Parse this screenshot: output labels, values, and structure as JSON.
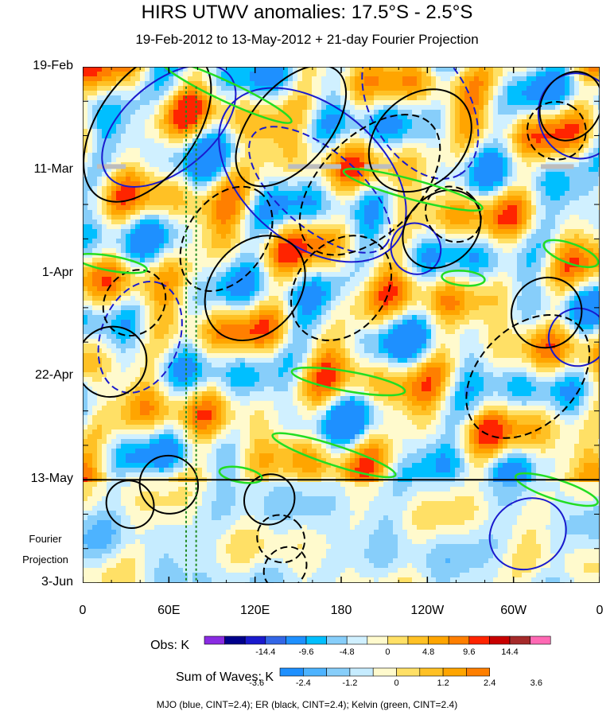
{
  "chart_data": {
    "type": "heatmap",
    "title": "HIRS UTWV anomalies: 17.5°S - 2.5°S",
    "subtitle": "19-Feb-2012 to 13-May-2012 + 21-day Fourier Projection",
    "xlabel": "",
    "ylabel": "",
    "x_ticks": [
      "0",
      "60E",
      "120E",
      "180",
      "120W",
      "60W",
      "0"
    ],
    "x_range_degrees_east": [
      0,
      360
    ],
    "y_ticks": [
      "19-Feb",
      "11-Mar",
      "1-Apr",
      "22-Apr",
      "13-May",
      "3-Jun"
    ],
    "y_range_days": [
      0,
      105
    ],
    "observation_end": "13-May",
    "projection_label_line1": "Fourier",
    "projection_label_line2": "Projection",
    "reference_longitudes_degrees_east": [
      72,
      79
    ],
    "obs_colorbar": {
      "label": "Obs: K",
      "tick_labels": [
        "-14.4",
        "-9.6",
        "-4.8",
        "0",
        "4.8",
        "9.6",
        "14.4"
      ],
      "colors": [
        "#8a2be2",
        "#00008b",
        "#1a1acd",
        "#3366e6",
        "#1e90ff",
        "#00bfff",
        "#87cefa",
        "#d0f0ff",
        "#fffacd",
        "#ffe066",
        "#ffc125",
        "#ffa500",
        "#ff7f00",
        "#ff2400",
        "#c80000",
        "#a52a2a",
        "#ff69b4"
      ]
    },
    "waves_colorbar": {
      "label": "Sum of Waves: K",
      "tick_labels": [
        "-3.6",
        "-2.4",
        "-1.2",
        "0",
        "1.2",
        "2.4",
        "3.6"
      ],
      "colors": [
        "#1e90ff",
        "#4db3ff",
        "#87cefa",
        "#c6ecff",
        "#fffacd",
        "#ffe066",
        "#ffc125",
        "#ffa500",
        "#ff7f00"
      ]
    },
    "contours": [
      {
        "name": "MJO",
        "color": "#1a1acd",
        "cint": 2.4
      },
      {
        "name": "ER",
        "color": "#000000",
        "cint": 2.4
      },
      {
        "name": "Kelvin",
        "color": "#22dd22",
        "cint": 2.4
      }
    ],
    "footnote": "MJO (blue, CINT=2.4); ER (black, CINT=2.4); Kelvin (green, CINT=2.4)"
  }
}
